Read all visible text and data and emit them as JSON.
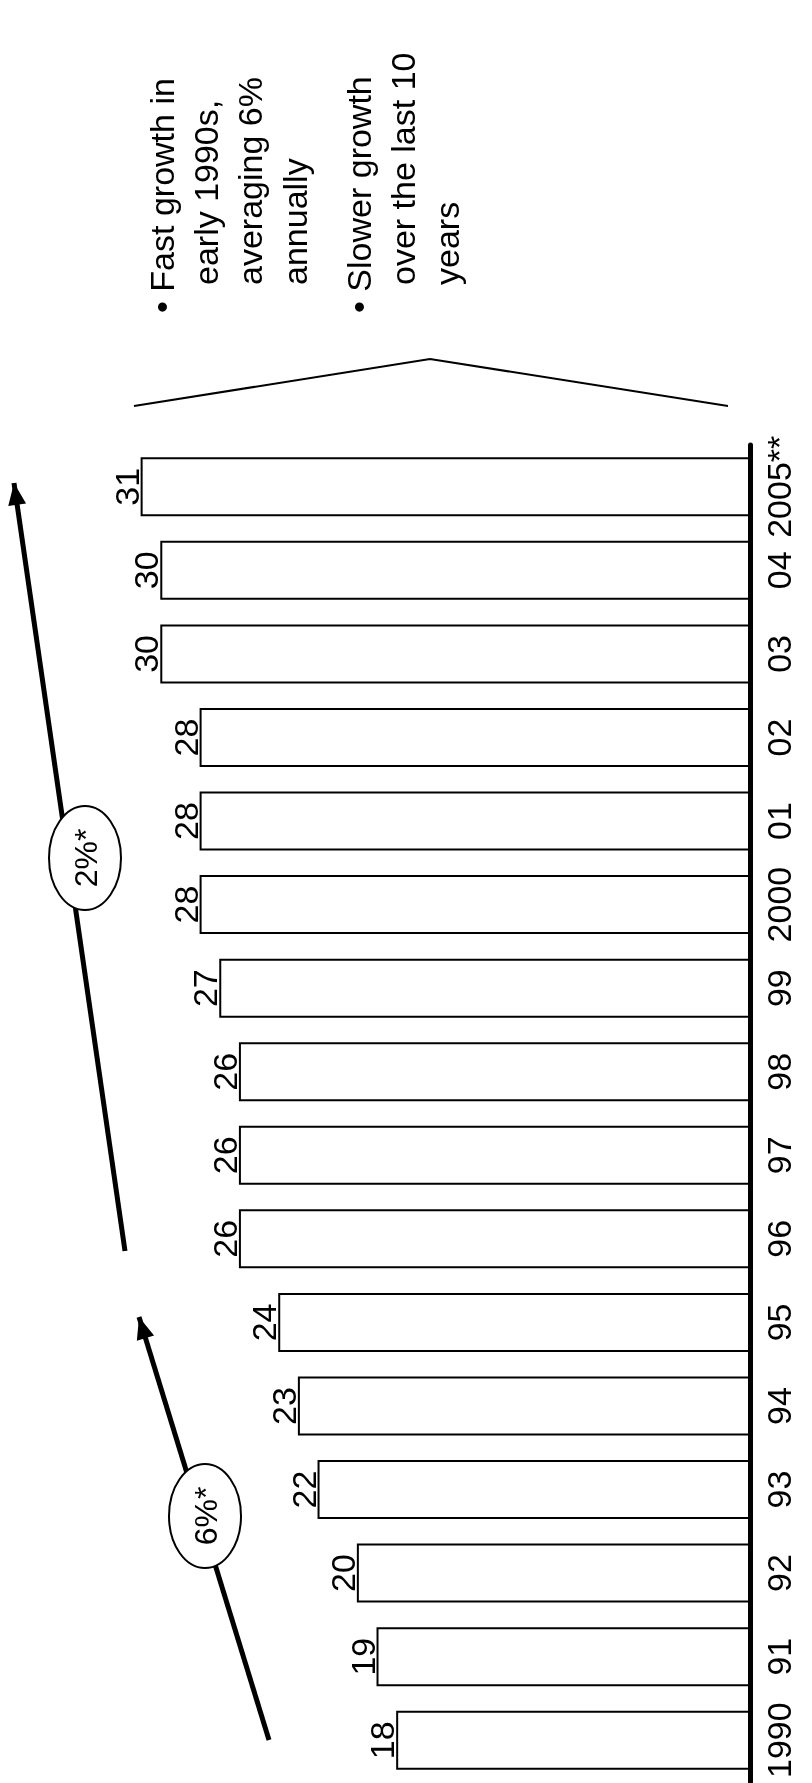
{
  "chart_data": {
    "type": "bar",
    "orientation": "horizontal",
    "categories": [
      "2005**",
      "04",
      "03",
      "02",
      "01",
      "2000",
      "99",
      "98",
      "97",
      "96",
      "95",
      "94",
      "93",
      "92",
      "91",
      "1990"
    ],
    "values": [
      31,
      30,
      30,
      28,
      28,
      28,
      27,
      26,
      26,
      26,
      24,
      23,
      22,
      20,
      19,
      18
    ],
    "color": "#ffffff",
    "data_labels": true,
    "tick_labels": "y",
    "annotations": [
      "6%*",
      "2%*",
      "• Fast growth in early 1990s, averaging 6% annually",
      "• Slower growth over the last 10 years"
    ]
  }
}
